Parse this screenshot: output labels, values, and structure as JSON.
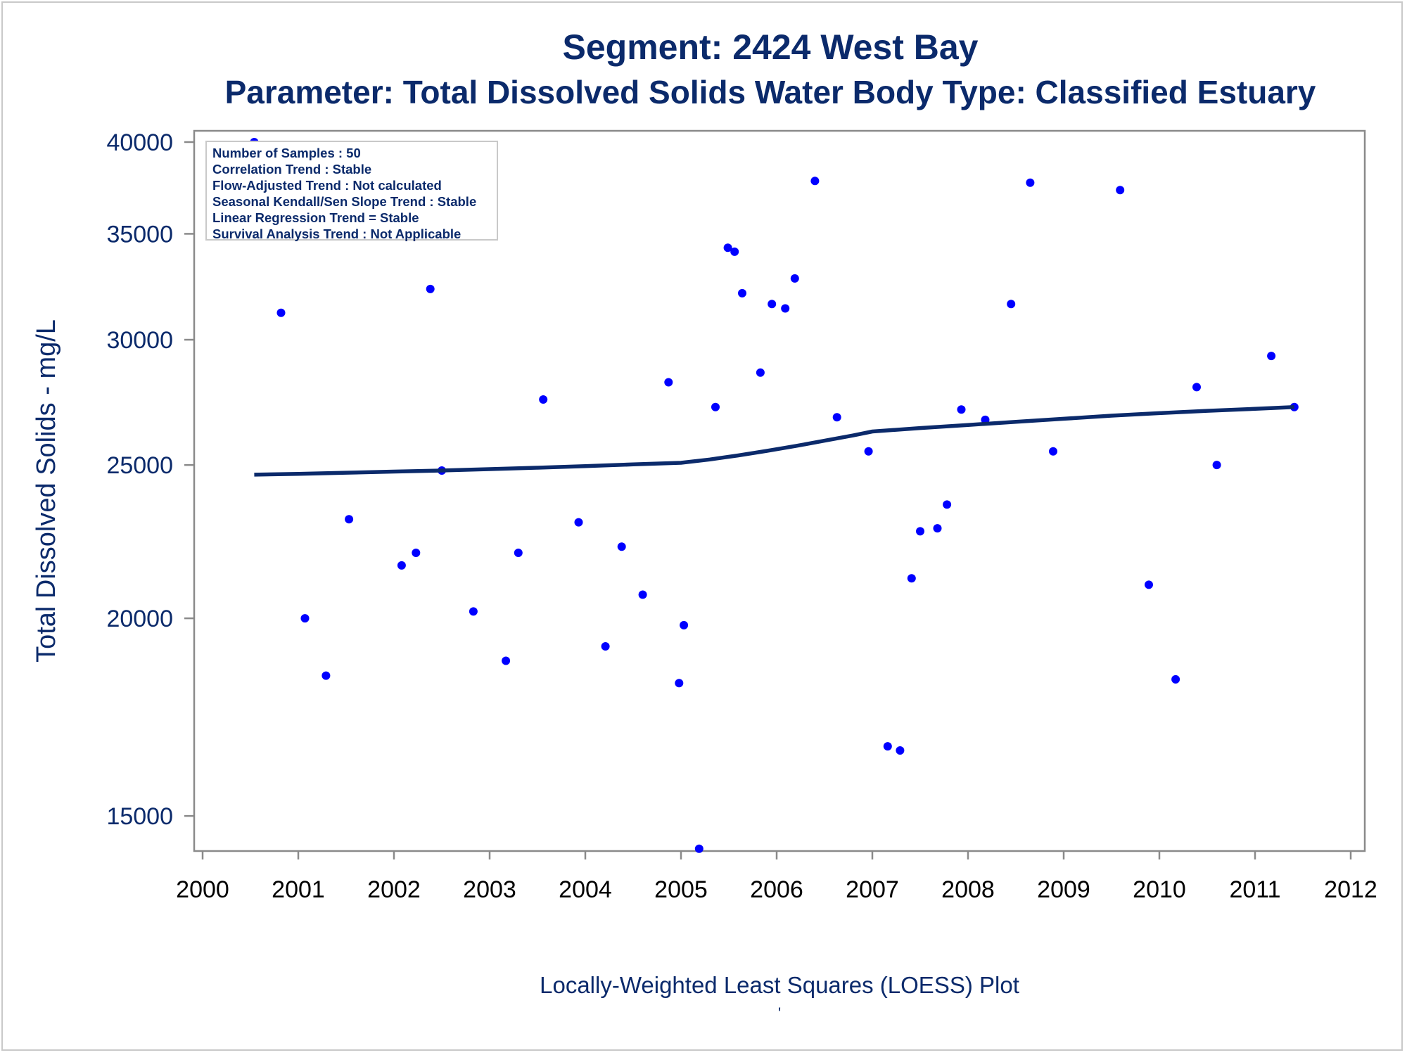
{
  "chart_data": {
    "type": "scatter",
    "title": "Segment: 2424  West Bay",
    "subtitle": "Parameter: Total Dissolved Solids   Water Body Type: Classified Estuary",
    "xlabel": "",
    "ylabel": "Total Dissolved Solids - mg/L",
    "footnote": "Locally-Weighted Least Squares (LOESS) Plot",
    "footnote_mark": "'",
    "x_ticks": [
      "2000",
      "2001",
      "2002",
      "2003",
      "2004",
      "2005",
      "2006",
      "2007",
      "2008",
      "2009",
      "2010",
      "2011",
      "2012"
    ],
    "y_ticks": [
      "15000",
      "20000",
      "25000",
      "30000",
      "35000",
      "40000"
    ],
    "xlim": [
      2000,
      2012
    ],
    "y_scale": "log",
    "ylim": [
      14400,
      40000
    ],
    "grid": false,
    "stats": [
      "Number of Samples : 50",
      "Correlation Trend : Stable",
      "Flow-Adjusted Trend : Not calculated",
      "Seasonal Kendall/Sen Slope Trend : Stable",
      "Linear Regression Trend = Stable",
      "Survival Analysis Trend : Not Applicable"
    ],
    "marker_color": "#0000ff",
    "line_color": "#0b2a6b",
    "series": [
      {
        "type": "scatter",
        "points": [
          [
            2000.54,
            40000
          ],
          [
            2000.82,
            31200
          ],
          [
            2001.07,
            20000
          ],
          [
            2001.29,
            18400
          ],
          [
            2001.53,
            23100
          ],
          [
            2002.08,
            21600
          ],
          [
            2002.23,
            22000
          ],
          [
            2002.38,
            32300
          ],
          [
            2002.5,
            24800
          ],
          [
            2002.83,
            20200
          ],
          [
            2003.17,
            18800
          ],
          [
            2003.3,
            22000
          ],
          [
            2003.56,
            27500
          ],
          [
            2003.93,
            23000
          ],
          [
            2004.21,
            19200
          ],
          [
            2004.38,
            22200
          ],
          [
            2004.6,
            20700
          ],
          [
            2004.87,
            28200
          ],
          [
            2004.98,
            18200
          ],
          [
            2005.03,
            19800
          ],
          [
            2005.19,
            14300
          ],
          [
            2005.36,
            27200
          ],
          [
            2005.49,
            34300
          ],
          [
            2005.56,
            34100
          ],
          [
            2005.64,
            32100
          ],
          [
            2005.83,
            28600
          ],
          [
            2005.95,
            31600
          ],
          [
            2006.09,
            31400
          ],
          [
            2006.19,
            32800
          ],
          [
            2006.4,
            37800
          ],
          [
            2006.63,
            26800
          ],
          [
            2006.96,
            25500
          ],
          [
            2007.16,
            16600
          ],
          [
            2007.29,
            16500
          ],
          [
            2007.41,
            21200
          ],
          [
            2007.5,
            22700
          ],
          [
            2007.68,
            22800
          ],
          [
            2007.78,
            23600
          ],
          [
            2007.93,
            27100
          ],
          [
            2008.18,
            26700
          ],
          [
            2008.45,
            31600
          ],
          [
            2008.65,
            37700
          ],
          [
            2008.89,
            25500
          ],
          [
            2009.59,
            37300
          ],
          [
            2009.89,
            21000
          ],
          [
            2010.17,
            18300
          ],
          [
            2010.39,
            28000
          ],
          [
            2010.6,
            25000
          ],
          [
            2011.17,
            29300
          ],
          [
            2011.41,
            27200
          ]
        ]
      },
      {
        "type": "line",
        "name": "",
        "points": [
          [
            2000.54,
            24650
          ],
          [
            2001.0,
            24680
          ],
          [
            2001.5,
            24720
          ],
          [
            2002.0,
            24760
          ],
          [
            2002.5,
            24800
          ],
          [
            2003.0,
            24850
          ],
          [
            2003.5,
            24900
          ],
          [
            2004.0,
            24960
          ],
          [
            2004.5,
            25020
          ],
          [
            2005.0,
            25080
          ],
          [
            2005.3,
            25200
          ],
          [
            2005.6,
            25350
          ],
          [
            2005.9,
            25520
          ],
          [
            2006.2,
            25700
          ],
          [
            2006.5,
            25900
          ],
          [
            2006.8,
            26100
          ],
          [
            2007.0,
            26250
          ],
          [
            2007.5,
            26380
          ],
          [
            2008.0,
            26500
          ],
          [
            2008.5,
            26620
          ],
          [
            2009.0,
            26740
          ],
          [
            2009.5,
            26860
          ],
          [
            2010.0,
            26960
          ],
          [
            2010.5,
            27050
          ],
          [
            2011.0,
            27130
          ],
          [
            2011.41,
            27200
          ]
        ]
      }
    ]
  }
}
